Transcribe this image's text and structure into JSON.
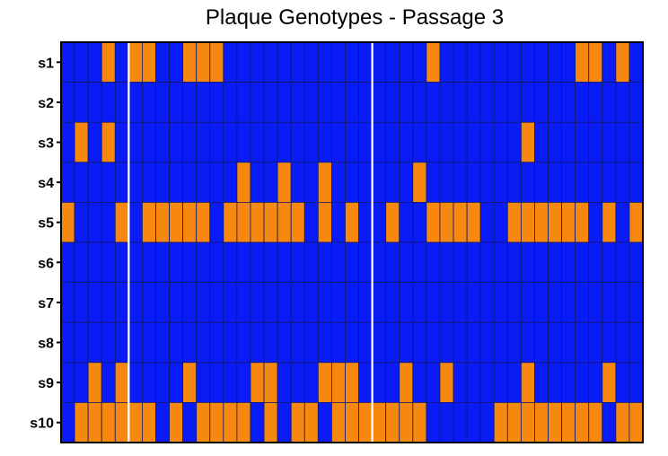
{
  "chart_data": {
    "type": "heatmap",
    "title": "Plaque Genotypes - Passage 3",
    "xlabel": "",
    "ylabel": "",
    "rows": [
      "s1",
      "s2",
      "s3",
      "s4",
      "s5",
      "s6",
      "s7",
      "s8",
      "s9",
      "s10"
    ],
    "column_count": 43,
    "highlight_value": 1,
    "values": [
      [
        0,
        0,
        0,
        1,
        0,
        1,
        1,
        0,
        0,
        1,
        1,
        1,
        0,
        0,
        0,
        0,
        0,
        0,
        0,
        0,
        0,
        0,
        0,
        0,
        0,
        0,
        0,
        1,
        0,
        0,
        0,
        0,
        0,
        0,
        0,
        0,
        0,
        0,
        1,
        1,
        0,
        1,
        0
      ],
      [
        0,
        0,
        0,
        0,
        0,
        0,
        0,
        0,
        0,
        0,
        0,
        0,
        0,
        0,
        0,
        0,
        0,
        0,
        0,
        0,
        0,
        0,
        0,
        0,
        0,
        0,
        0,
        0,
        0,
        0,
        0,
        0,
        0,
        0,
        0,
        0,
        0,
        0,
        0,
        0,
        0,
        0,
        0
      ],
      [
        0,
        1,
        0,
        1,
        0,
        0,
        0,
        0,
        0,
        0,
        0,
        0,
        0,
        0,
        0,
        0,
        0,
        0,
        0,
        0,
        0,
        0,
        0,
        0,
        0,
        0,
        0,
        0,
        0,
        0,
        0,
        0,
        0,
        0,
        1,
        0,
        0,
        0,
        0,
        0,
        0,
        0,
        0
      ],
      [
        0,
        0,
        0,
        0,
        0,
        0,
        0,
        0,
        0,
        0,
        0,
        0,
        0,
        1,
        0,
        0,
        1,
        0,
        0,
        1,
        0,
        0,
        0,
        0,
        0,
        0,
        1,
        0,
        0,
        0,
        0,
        0,
        0,
        0,
        0,
        0,
        0,
        0,
        0,
        0,
        0,
        0,
        0
      ],
      [
        1,
        0,
        0,
        0,
        1,
        0,
        1,
        1,
        1,
        1,
        1,
        0,
        1,
        1,
        1,
        1,
        1,
        1,
        0,
        1,
        0,
        1,
        0,
        0,
        1,
        0,
        0,
        1,
        1,
        1,
        1,
        0,
        0,
        1,
        1,
        1,
        1,
        1,
        1,
        0,
        1,
        0,
        1
      ],
      [
        0,
        0,
        0,
        0,
        0,
        0,
        0,
        0,
        0,
        0,
        0,
        0,
        0,
        0,
        0,
        0,
        0,
        0,
        0,
        0,
        0,
        0,
        0,
        0,
        0,
        0,
        0,
        0,
        0,
        0,
        0,
        0,
        0,
        0,
        0,
        0,
        0,
        0,
        0,
        0,
        0,
        0,
        0
      ],
      [
        0,
        0,
        0,
        0,
        0,
        0,
        0,
        0,
        0,
        0,
        0,
        0,
        0,
        0,
        0,
        0,
        0,
        0,
        0,
        0,
        0,
        0,
        0,
        0,
        0,
        0,
        0,
        0,
        0,
        0,
        0,
        0,
        0,
        0,
        0,
        0,
        0,
        0,
        0,
        0,
        0,
        0,
        0
      ],
      [
        0,
        0,
        0,
        0,
        0,
        0,
        0,
        0,
        0,
        0,
        0,
        0,
        0,
        0,
        0,
        0,
        0,
        0,
        0,
        0,
        0,
        0,
        0,
        0,
        0,
        0,
        0,
        0,
        0,
        0,
        0,
        0,
        0,
        0,
        0,
        0,
        0,
        0,
        0,
        0,
        0,
        0,
        0
      ],
      [
        0,
        0,
        1,
        0,
        1,
        0,
        0,
        0,
        0,
        1,
        0,
        0,
        0,
        0,
        1,
        1,
        0,
        0,
        0,
        1,
        1,
        1,
        0,
        0,
        0,
        1,
        0,
        0,
        1,
        0,
        0,
        0,
        0,
        0,
        1,
        0,
        0,
        0,
        0,
        0,
        1,
        0,
        0
      ],
      [
        0,
        1,
        1,
        1,
        1,
        1,
        1,
        0,
        1,
        0,
        1,
        1,
        1,
        1,
        0,
        1,
        0,
        1,
        1,
        0,
        1,
        1,
        1,
        1,
        1,
        1,
        1,
        0,
        0,
        0,
        0,
        0,
        1,
        1,
        1,
        1,
        1,
        1,
        1,
        1,
        0,
        1,
        1
      ]
    ],
    "white_lines_after_column": [
      5,
      23
    ],
    "colors": {
      "background": "#0a1cf5",
      "highlight": "#f7880f",
      "gridline": "#0f1a6b",
      "separator": "#ffffff",
      "frame": "#000000"
    },
    "grid": true,
    "legend": "none"
  }
}
